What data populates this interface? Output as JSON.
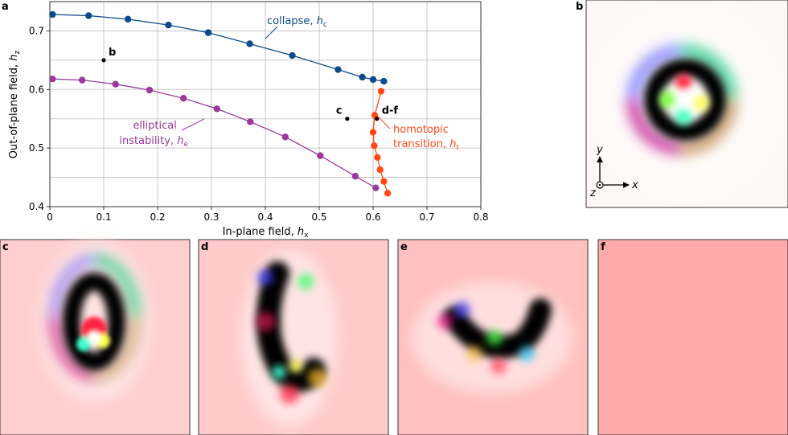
{
  "chart_data": {
    "type": "scatter",
    "xlabel": "In-plane field, ",
    "xlabel_sym": "h",
    "xlabel_sub": "x",
    "ylabel": "Out-of-plane field, ",
    "ylabel_sym": "h",
    "ylabel_sub": "z",
    "xlim": [
      0,
      0.8
    ],
    "ylim": [
      0.4,
      0.75
    ],
    "xticks": [
      0,
      0.1,
      0.2,
      0.3,
      0.4,
      0.5,
      0.6,
      0.7,
      0.8
    ],
    "xtick_labels": [
      "0",
      "0.1",
      "0.2",
      "0.3",
      "0.4",
      "0.5",
      "0.6",
      "0.7",
      "0.8"
    ],
    "yticks": [
      0.4,
      0.5,
      0.6,
      0.7
    ],
    "ytick_labels": [
      "0.4",
      "0.5",
      "0.6",
      "0.7"
    ],
    "grid": true,
    "series": [
      {
        "key": "collapse",
        "color": "#0b4a8b",
        "label_text": "collapse, ",
        "label_sym": "h",
        "label_sub": "c",
        "x": [
          0.005,
          0.072,
          0.145,
          0.22,
          0.294,
          0.371,
          0.45,
          0.535,
          0.58,
          0.6,
          0.62
        ],
        "y": [
          0.728,
          0.726,
          0.72,
          0.71,
          0.697,
          0.678,
          0.658,
          0.634,
          0.621,
          0.617,
          0.614
        ]
      },
      {
        "key": "elliptical",
        "color": "#9b3a9b",
        "label_text_1": "elliptical",
        "label_text_2": "instability, ",
        "label_sym": "h",
        "label_sub": "e",
        "x": [
          0.005,
          0.06,
          0.122,
          0.185,
          0.248,
          0.31,
          0.372,
          0.437,
          0.502,
          0.567,
          0.605
        ],
        "y": [
          0.618,
          0.616,
          0.609,
          0.599,
          0.585,
          0.567,
          0.545,
          0.519,
          0.487,
          0.452,
          0.432
        ]
      },
      {
        "key": "homotopic",
        "color": "#ff4a17",
        "label_text_1": "homotopic",
        "label_text_2": "transition, ",
        "label_sym": "h",
        "label_sub": "t",
        "x": [
          0.615,
          0.603,
          0.6,
          0.602,
          0.608,
          0.613,
          0.62,
          0.627
        ],
        "y": [
          0.597,
          0.556,
          0.527,
          0.504,
          0.484,
          0.463,
          0.443,
          0.423
        ]
      }
    ],
    "points": [
      {
        "label": "b",
        "x": 0.1,
        "y": 0.65
      },
      {
        "label": "c",
        "x": 0.552,
        "y": 0.55
      },
      {
        "label": "d-f",
        "x": 0.607,
        "y": 0.55
      }
    ]
  },
  "panels": {
    "a": "a",
    "b": "b",
    "c": "c",
    "d": "d",
    "e": "e",
    "f": "f"
  },
  "axes_inset": {
    "y": "y",
    "x": "x",
    "z": "z"
  }
}
